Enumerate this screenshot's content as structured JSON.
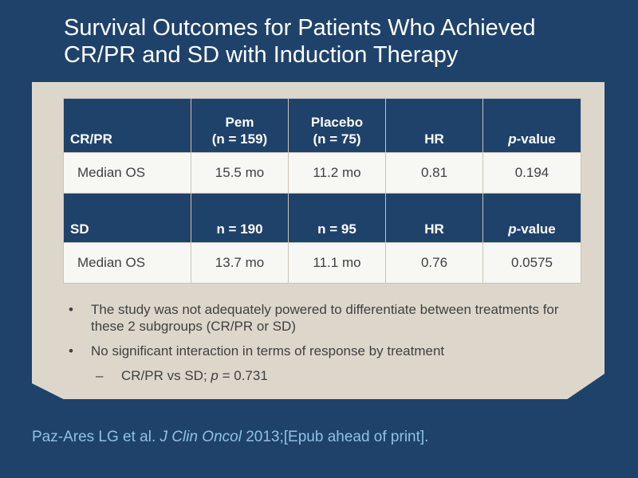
{
  "slide": {
    "title_line1": "Survival Outcomes for Patients Who Achieved",
    "title_line2": "CR/PR and SD with Induction Therapy"
  },
  "table": {
    "group1": {
      "label": "CR/PR",
      "col_pem": [
        "Pem",
        "(n = 159)"
      ],
      "col_placebo": [
        "Placebo",
        "(n = 75)"
      ],
      "col_hr": "HR",
      "col_p_italic": "p",
      "col_p_rest": "-value",
      "row": {
        "label": "Median OS",
        "pem": "15.5 mo",
        "placebo": "11.2 mo",
        "hr": "0.81",
        "p": "0.194"
      }
    },
    "group2": {
      "label": "SD",
      "col_pem": "n = 190",
      "col_placebo": "n = 95",
      "col_hr": "HR",
      "col_p_italic": "p",
      "col_p_rest": "-value",
      "row": {
        "label": "Median OS",
        "pem": "13.7 mo",
        "placebo": "11.1 mo",
        "hr": "0.76",
        "p": "0.0575"
      }
    }
  },
  "bullets": {
    "b1": "The study was not adequately powered to differentiate between treatments for these 2 subgroups (CR/PR or SD)",
    "b2": "No significant interaction in terms of response by treatment",
    "sub_prefix": "CR/PR vs SD; ",
    "sub_italic": "p",
    "sub_rest": " = 0.731"
  },
  "citation": {
    "authors": "Paz-Ares LG et al. ",
    "journal": "J Clin Oncol",
    "rest": " 2013;[Epub ahead of print]."
  }
}
